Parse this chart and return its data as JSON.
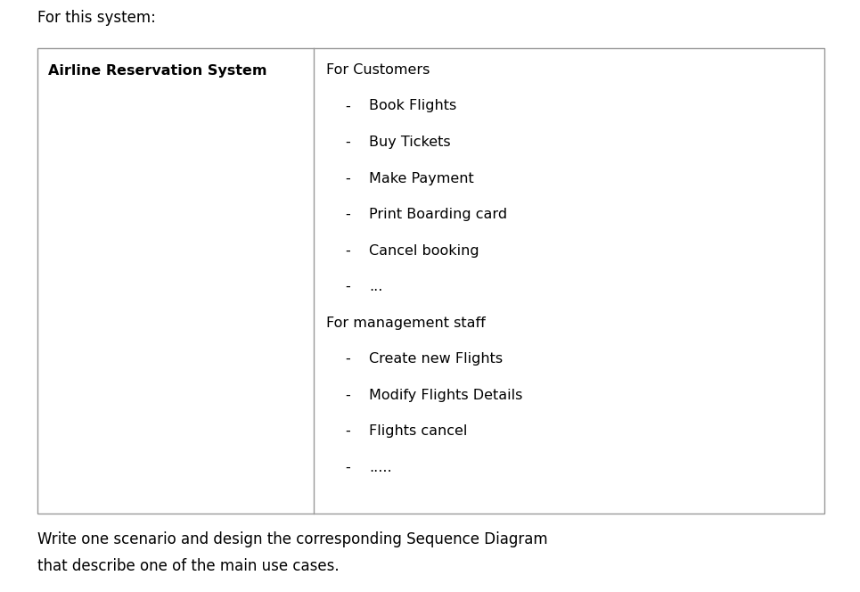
{
  "background_color": "#ffffff",
  "header_text": "For this system:",
  "header_fontsize": 12,
  "col1_header": "Airline Reservation System",
  "col1_header_fontsize": 11.5,
  "col2_lines": [
    {
      "text": "For Customers",
      "indent": 0,
      "fontsize": 11.5
    },
    {
      "text": "Book Flights",
      "indent": 1,
      "fontsize": 11.5
    },
    {
      "text": "Buy Tickets",
      "indent": 1,
      "fontsize": 11.5
    },
    {
      "text": "Make Payment",
      "indent": 1,
      "fontsize": 11.5
    },
    {
      "text": "Print Boarding card",
      "indent": 1,
      "fontsize": 11.5
    },
    {
      "text": "Cancel booking",
      "indent": 1,
      "fontsize": 11.5
    },
    {
      "text": "...",
      "indent": 1,
      "fontsize": 11.5
    },
    {
      "text": "For management staff",
      "indent": 0,
      "fontsize": 11.5
    },
    {
      "text": "Create new Flights",
      "indent": 1,
      "fontsize": 11.5
    },
    {
      "text": "Modify Flights Details",
      "indent": 1,
      "fontsize": 11.5
    },
    {
      "text": "Flights cancel",
      "indent": 1,
      "fontsize": 11.5
    },
    {
      "text": ".....",
      "indent": 1,
      "fontsize": 11.5
    }
  ],
  "footer_lines": [
    "Write one scenario and design the corresponding Sequence Diagram",
    "that describe one of the main use cases."
  ],
  "footer_fontsize": 12,
  "border_color": "#999999",
  "border_linewidth": 1.0
}
